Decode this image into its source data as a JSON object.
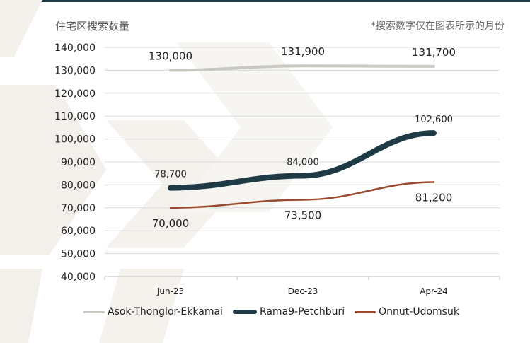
{
  "chart_data": {
    "type": "line",
    "y_title": "住宅区搜索数量",
    "note": "*搜索数字仅在图表所示的月份",
    "categories": [
      "Jun-23",
      "Dec-23",
      "Apr-24"
    ],
    "ylim": [
      40000,
      140000
    ],
    "ytick_step": 10000,
    "yticks": [
      "40,000",
      "50,000",
      "60,000",
      "70,000",
      "80,000",
      "90,000",
      "100,000",
      "110,000",
      "120,000",
      "130,000",
      "140,000"
    ],
    "grid": true,
    "legend_position": "bottom-left",
    "series": [
      {
        "name": "Asok-Thonglor-Ekkamai",
        "values": [
          130000,
          131900,
          131700
        ],
        "labels": [
          "130,000",
          "131,900",
          "131,700"
        ],
        "color": "#c8c8c0",
        "label_position": "above"
      },
      {
        "name": "Rama9-Petchburi",
        "values": [
          78700,
          84000,
          102600
        ],
        "labels": [
          "78,700",
          "84,000",
          "102,600"
        ],
        "color": "#1e3a44",
        "label_position": "above"
      },
      {
        "name": "Onnut-Udomsuk",
        "values": [
          70000,
          73500,
          81200
        ],
        "labels": [
          "70,000",
          "73,500",
          "81,200"
        ],
        "color": "#9a4a2e",
        "label_position": "below"
      }
    ]
  }
}
